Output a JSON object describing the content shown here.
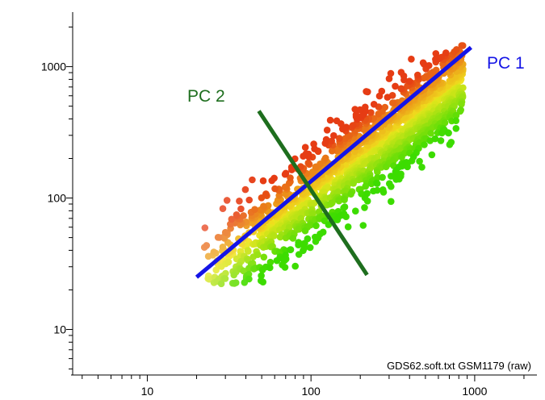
{
  "chart_data": {
    "type": "scatter",
    "title": "",
    "xlabel": "",
    "ylabel": "",
    "x_scale": "log",
    "y_scale": "log",
    "xlim": [
      3.5,
      2400
    ],
    "ylim": [
      4.5,
      2600
    ],
    "x_ticks": [
      {
        "value": 10,
        "label": "10"
      },
      {
        "value": 100,
        "label": "100"
      },
      {
        "value": 1000,
        "label": "1000"
      }
    ],
    "y_ticks": [
      {
        "value": 10,
        "label": "10"
      },
      {
        "value": 100,
        "label": "100"
      },
      {
        "value": 1000,
        "label": "1000"
      }
    ],
    "grid": false,
    "annotation": "GDS62.soft.txt GSM1179 (raw)",
    "colors": {
      "pc1": "#1414e6",
      "pc2": "#1e6e1e",
      "high_ratio": "#e63c14",
      "mid_ratio": "#f0e61e",
      "low_ratio": "#3cdc00"
    },
    "principal_axes": [
      {
        "name": "PC 1",
        "x": [
          20,
          950
        ],
        "y": [
          25,
          1400
        ],
        "color": "#1414e6"
      },
      {
        "name": "PC 2",
        "x": [
          48,
          220
        ],
        "y": [
          460,
          26
        ],
        "color": "#1e6e1e"
      }
    ],
    "point_cloud": {
      "description_of_distribution": "dense cloud of spots along PC 1",
      "x_range": [
        22,
        850
      ],
      "y_range": [
        22,
        1450
      ]
    }
  }
}
